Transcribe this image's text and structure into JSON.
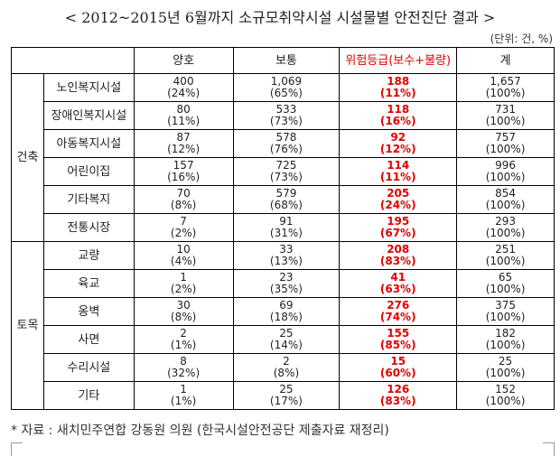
{
  "title": "< 2012~2015년 6월까지 소규모취약시설 시설물별 안전진단 결과 >",
  "unit": "(단위: 건, %)",
  "headers": [
    "양호",
    "보통",
    "위험등급(보수+불량)",
    "계"
  ],
  "groups": [
    {
      "name": "건축",
      "rows": [
        {
          "name": "노인복지시설",
          "good": [
            "400",
            "(24%)"
          ],
          "normal": [
            "1,069",
            "(65%)"
          ],
          "risk": [
            "188",
            "(11%)"
          ],
          "total": [
            "1,657",
            "(100%)"
          ]
        },
        {
          "name": "장애인복지시설",
          "good": [
            "80",
            "(11%)"
          ],
          "normal": [
            "533",
            "(73%)"
          ],
          "risk": [
            "118",
            "(16%)"
          ],
          "total": [
            "731",
            "(100%)"
          ]
        },
        {
          "name": "아동복지시설",
          "good": [
            "87",
            "(12%)"
          ],
          "normal": [
            "578",
            "(76%)"
          ],
          "risk": [
            "92",
            "(12%)"
          ],
          "total": [
            "757",
            "(100%)"
          ]
        },
        {
          "name": "어린이집",
          "good": [
            "157",
            "(16%)"
          ],
          "normal": [
            "725",
            "(73%)"
          ],
          "risk": [
            "114",
            "(11%)"
          ],
          "total": [
            "996",
            "(100%)"
          ]
        },
        {
          "name": "기타복지",
          "good": [
            "70",
            "(8%)"
          ],
          "normal": [
            "579",
            "(68%)"
          ],
          "risk": [
            "205",
            "(24%)"
          ],
          "total": [
            "854",
            "(100%)"
          ]
        },
        {
          "name": "전통시장",
          "good": [
            "7",
            "(2%)"
          ],
          "normal": [
            "91",
            "(31%)"
          ],
          "risk": [
            "195",
            "(67%)"
          ],
          "total": [
            "293",
            "(100%)"
          ]
        }
      ]
    },
    {
      "name": "토목",
      "rows": [
        {
          "name": "교량",
          "good": [
            "10",
            "(4%)"
          ],
          "normal": [
            "33",
            "(13%)"
          ],
          "risk": [
            "208",
            "(83%)"
          ],
          "total": [
            "251",
            "(100%)"
          ]
        },
        {
          "name": "육교",
          "good": [
            "1",
            "(2%)"
          ],
          "normal": [
            "23",
            "(35%)"
          ],
          "risk": [
            "41",
            "(63%)"
          ],
          "total": [
            "65",
            "(100%)"
          ]
        },
        {
          "name": "옹벽",
          "good": [
            "30",
            "(8%)"
          ],
          "normal": [
            "69",
            "(18%)"
          ],
          "risk": [
            "276",
            "(74%)"
          ],
          "total": [
            "375",
            "(100%)"
          ]
        },
        {
          "name": "사면",
          "good": [
            "2",
            "(1%)"
          ],
          "normal": [
            "25",
            "(14%)"
          ],
          "risk": [
            "155",
            "(85%)"
          ],
          "total": [
            "182",
            "(100%)"
          ]
        },
        {
          "name": "수리시설",
          "good": [
            "8",
            "(32%)"
          ],
          "normal": [
            "2",
            "(8%)"
          ],
          "risk": [
            "15",
            "(60%)"
          ],
          "total": [
            "25",
            "(100%)"
          ]
        },
        {
          "name": "기타",
          "good": [
            "1",
            "(1%)"
          ],
          "normal": [
            "25",
            "(17%)"
          ],
          "risk": [
            "126",
            "(83%)"
          ],
          "total": [
            "152",
            "(100%)"
          ]
        }
      ]
    }
  ],
  "note": "* 자료 : 새치민주연합 강동원 의원 (한국시설안전공단 제출자료 재정리)",
  "colors": {
    "risk": "#e00000"
  }
}
